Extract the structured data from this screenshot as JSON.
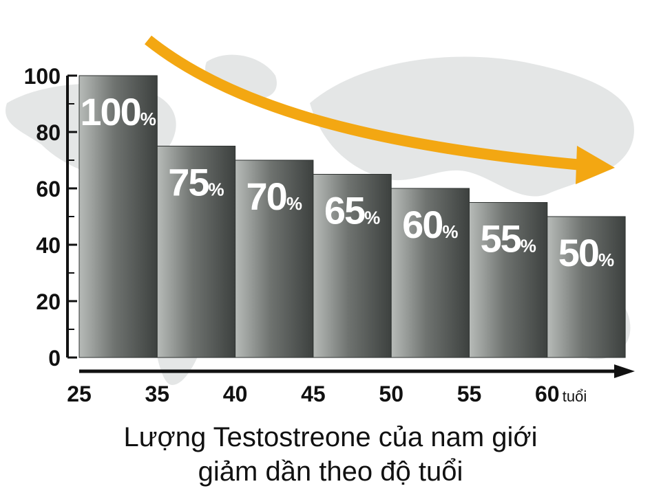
{
  "chart_data": {
    "type": "bar",
    "bin_edges": [
      "25",
      "35",
      "40",
      "45",
      "50",
      "55",
      "60"
    ],
    "values": [
      100,
      75,
      70,
      65,
      60,
      55,
      50
    ],
    "data_labels": [
      "100",
      "75",
      "70",
      "65",
      "60",
      "55",
      "50"
    ],
    "data_label_suffix": "%",
    "yticks": [
      "100",
      "80",
      "60",
      "40",
      "20",
      "0"
    ],
    "ylim": [
      0,
      100
    ],
    "x_unit": "tuổi",
    "trend_arrow": "decreasing",
    "colors": {
      "bar": "#6f7370",
      "bar_light": "#b7bbb8",
      "bar_dark": "#3d413f",
      "arrow": "#f3a712",
      "map": "#d9dcdc"
    }
  },
  "caption": {
    "line1": "Lượng Testostreone của nam giới",
    "line2": "giảm dần theo độ tuổi"
  }
}
